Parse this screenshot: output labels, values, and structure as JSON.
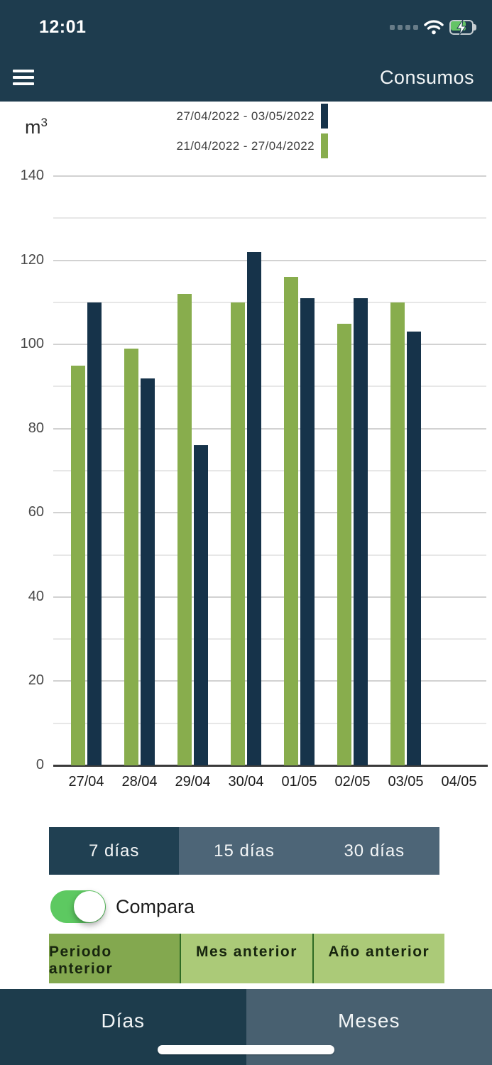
{
  "status_bar": {
    "time": "12:01",
    "icons": [
      "cellular-signal-icon",
      "wifi-icon",
      "battery-charging-icon"
    ]
  },
  "nav": {
    "title": "Consumos",
    "menu_icon": "hamburger-menu-icon"
  },
  "chart_data": {
    "type": "bar",
    "title": "",
    "unit_label": "m",
    "unit_exponent": "3",
    "categories": [
      "27/04",
      "28/04",
      "29/04",
      "30/04",
      "01/05",
      "02/05",
      "03/05",
      "04/05"
    ],
    "series": [
      {
        "name": "27/04/2022 - 03/05/2022",
        "color": "#16334a",
        "values": [
          110,
          92,
          76,
          122,
          111,
          111,
          103
        ]
      },
      {
        "name": "21/04/2022 - 27/04/2022",
        "color": "#88ad4d",
        "values": [
          95,
          99,
          112,
          110,
          116,
          105,
          110
        ]
      }
    ],
    "ylim": [
      0,
      140
    ],
    "ytick_step": 20,
    "grid_step": 10,
    "grid": "on",
    "legend_position": "top-center"
  },
  "period_selector": {
    "options": [
      {
        "label": "7 días",
        "selected": true
      },
      {
        "label": "15 días",
        "selected": false
      },
      {
        "label": "30 días",
        "selected": false
      }
    ]
  },
  "compare_toggle": {
    "label": "Compara",
    "on": true
  },
  "compare_modes": {
    "options": [
      {
        "label": "Periodo anterior",
        "selected": true
      },
      {
        "label": "Mes anterior",
        "selected": false
      },
      {
        "label": "Año anterior",
        "selected": false
      }
    ]
  },
  "bottom_tabs": {
    "tabs": [
      {
        "label": "Días",
        "selected": true
      },
      {
        "label": "Meses",
        "selected": false
      }
    ]
  },
  "colors": {
    "header_bg": "#1e3c4e",
    "bar_current": "#16334a",
    "bar_previous": "#88ad4d",
    "segment_selected": "#204052",
    "segment_unselected": "#4d6577",
    "toggle_on": "#5dc961",
    "mode_selected": "#83a84f",
    "mode_unselected": "#abca78",
    "tab_selected": "#1d3c4c",
    "tab_unselected": "#486070",
    "battery_fill": "#65c466"
  }
}
